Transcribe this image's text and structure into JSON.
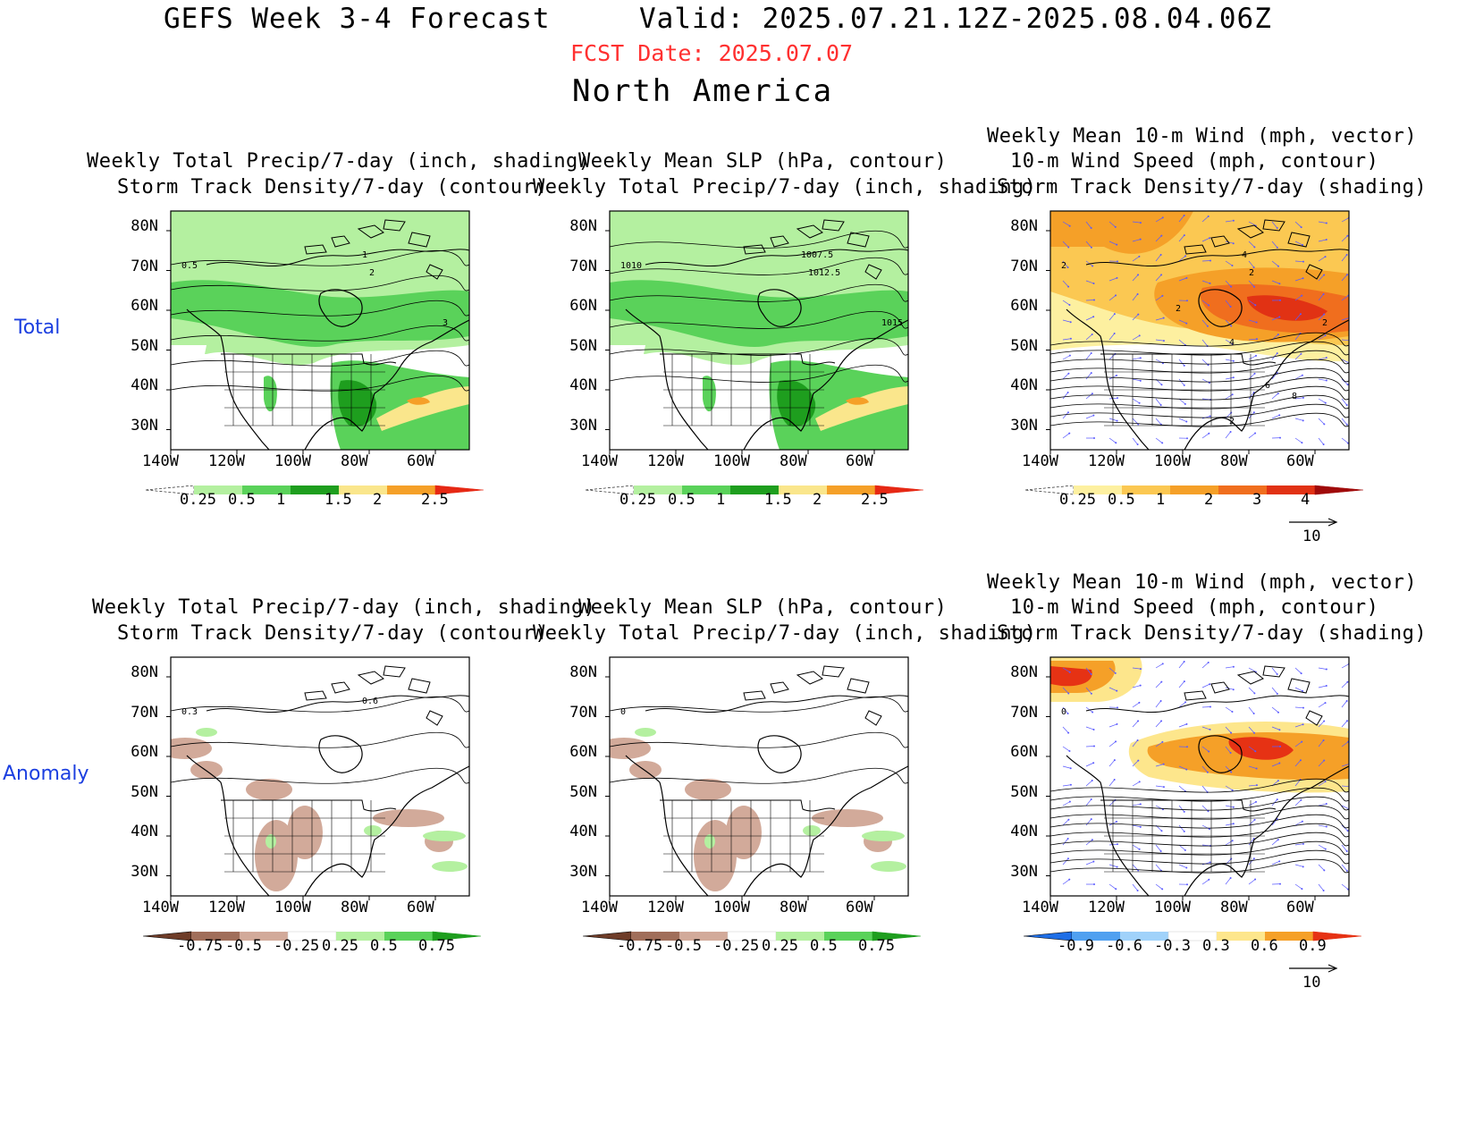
{
  "header": {
    "title": "GEFS Week 3-4 Forecast",
    "valid": "Valid: 2025.07.21.12Z-2025.08.04.06Z",
    "fcst_date": "FCST Date: 2025.07.07",
    "region": "North America"
  },
  "rows": [
    {
      "label": "Total"
    },
    {
      "label": "Anomaly"
    }
  ],
  "panels": [
    {
      "title1": "Weekly Total Precip/7-day (inch, shading)",
      "title2": "Storm Track Density/7-day (contour)",
      "theme": "precip-total",
      "contour_labels": [
        "0.5",
        "1",
        "2",
        "3"
      ]
    },
    {
      "title1": "Weekly Mean SLP (hPa, contour)",
      "title2": "Weekly Total Precip/7-day (inch, shading)",
      "theme": "precip-total",
      "contour_labels": [
        "1010",
        "1007.5",
        "1012.5",
        "1015"
      ]
    },
    {
      "title0": "Weekly Mean 10-m Wind (mph, vector)",
      "title1": "10-m Wind Speed (mph, contour)",
      "title2": "Storm Track Density/7-day (shading)",
      "theme": "storm-total",
      "contour_labels": [
        "2",
        "4",
        "2",
        "2",
        "2",
        "4",
        "6",
        "8",
        "2"
      ],
      "vector_ref": "10"
    },
    {
      "title1": "Weekly Total Precip/7-day (inch, shading)",
      "title2": "Storm Track Density/7-day (contour)",
      "theme": "precip-anom",
      "contour_labels": [
        "0.3",
        "0.6"
      ]
    },
    {
      "title1": "Weekly Mean SLP (hPa, contour)",
      "title2": "Weekly Total Precip/7-day (inch, shading)",
      "theme": "precip-anom",
      "contour_labels": [
        "0"
      ]
    },
    {
      "title0": "Weekly Mean 10-m Wind (mph, vector)",
      "title1": "10-m Wind Speed (mph, contour)",
      "title2": "Storm Track Density/7-day (shading)",
      "theme": "storm-anom",
      "contour_labels": [
        "0"
      ],
      "vector_ref": "10"
    }
  ],
  "axes": {
    "lat_labels": [
      "80N",
      "70N",
      "60N",
      "50N",
      "40N",
      "30N"
    ],
    "lon_labels": [
      "140W",
      "120W",
      "100W",
      "80W",
      "60W"
    ]
  },
  "colorbars": {
    "precip_total": {
      "labels": [
        "0.25",
        "0.5",
        "1",
        "1.5",
        "2",
        "2.5"
      ],
      "colors": [
        "#ffffff",
        "#b4f0a0",
        "#5ad25a",
        "#1e9e1e",
        "#fae68c",
        "#f5a028",
        "#e62814"
      ]
    },
    "storm_total": {
      "labels": [
        "0.25",
        "0.5",
        "1",
        "2",
        "3",
        "4"
      ],
      "colors": [
        "#ffffff",
        "#fdf0a0",
        "#fbc852",
        "#f5a028",
        "#f06e1e",
        "#e13214",
        "#a00a0a"
      ]
    },
    "precip_anom": {
      "labels": [
        "-0.75",
        "-0.5",
        "-0.25",
        "0.25",
        "0.5",
        "0.75"
      ],
      "colors": [
        "#6e3c28",
        "#a06e5a",
        "#d2aa9a",
        "#ffffff",
        "#b4f0a0",
        "#5ad25a",
        "#1e9e1e"
      ]
    },
    "storm_anom": {
      "labels": [
        "-0.9",
        "-0.6",
        "-0.3",
        "0.3",
        "0.6",
        "0.9"
      ],
      "colors": [
        "#1e6ee6",
        "#50a0f0",
        "#a0d2fa",
        "#ffffff",
        "#fde68c",
        "#f5a028",
        "#e63214"
      ]
    }
  }
}
